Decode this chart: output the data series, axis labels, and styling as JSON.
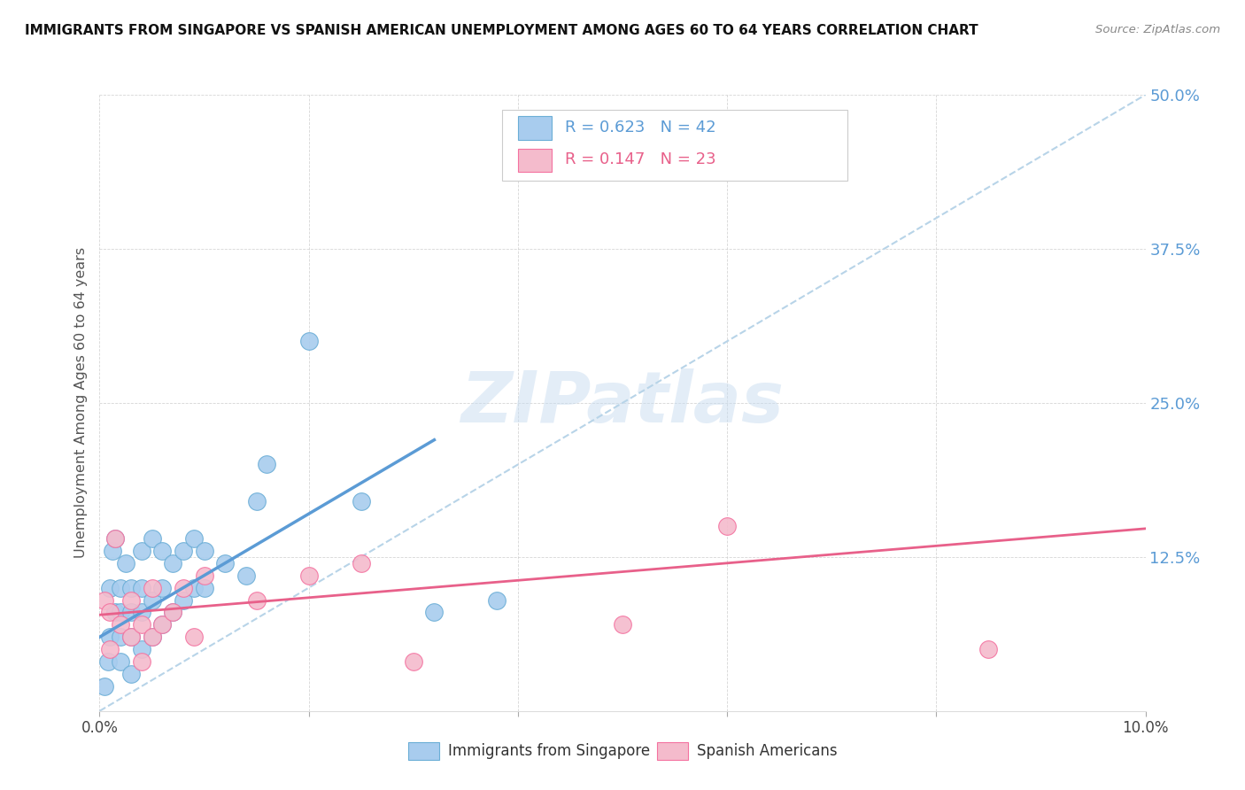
{
  "title": "IMMIGRANTS FROM SINGAPORE VS SPANISH AMERICAN UNEMPLOYMENT AMONG AGES 60 TO 64 YEARS CORRELATION CHART",
  "source": "Source: ZipAtlas.com",
  "ylabel": "Unemployment Among Ages 60 to 64 years",
  "xlim": [
    0.0,
    0.1
  ],
  "ylim": [
    0.0,
    0.5
  ],
  "yticks": [
    0.0,
    0.125,
    0.25,
    0.375,
    0.5
  ],
  "ytick_labels": [
    "",
    "12.5%",
    "25.0%",
    "37.5%",
    "50.0%"
  ],
  "xticks": [
    0.0,
    0.02,
    0.04,
    0.06,
    0.08,
    0.1
  ],
  "xtick_labels": [
    "0.0%",
    "",
    "",
    "",
    "",
    "10.0%"
  ],
  "legend_r1": "0.623",
  "legend_n1": "42",
  "legend_r2": "0.147",
  "legend_n2": "23",
  "legend_label1": "Immigrants from Singapore",
  "legend_label2": "Spanish Americans",
  "blue_fill": "#A8CCEE",
  "pink_fill": "#F4BBCC",
  "blue_edge": "#6BAED6",
  "pink_edge": "#F472A0",
  "blue_line": "#5B9BD5",
  "pink_line": "#E8608A",
  "dashed_color": "#B8D4E8",
  "watermark_color": "#C8DCF0",
  "watermark": "ZIPatlas",
  "singapore_x": [
    0.0005,
    0.0008,
    0.001,
    0.001,
    0.0012,
    0.0015,
    0.0015,
    0.002,
    0.002,
    0.002,
    0.002,
    0.0025,
    0.003,
    0.003,
    0.003,
    0.003,
    0.004,
    0.004,
    0.004,
    0.004,
    0.005,
    0.005,
    0.005,
    0.006,
    0.006,
    0.006,
    0.007,
    0.007,
    0.008,
    0.008,
    0.009,
    0.009,
    0.01,
    0.01,
    0.012,
    0.014,
    0.015,
    0.016,
    0.02,
    0.025,
    0.032,
    0.038
  ],
  "singapore_y": [
    0.02,
    0.04,
    0.06,
    0.1,
    0.13,
    0.08,
    0.14,
    0.04,
    0.06,
    0.08,
    0.1,
    0.12,
    0.03,
    0.06,
    0.08,
    0.1,
    0.05,
    0.08,
    0.1,
    0.13,
    0.06,
    0.09,
    0.14,
    0.07,
    0.1,
    0.13,
    0.08,
    0.12,
    0.09,
    0.13,
    0.1,
    0.14,
    0.1,
    0.13,
    0.12,
    0.11,
    0.17,
    0.2,
    0.3,
    0.17,
    0.08,
    0.09
  ],
  "spanish_x": [
    0.0005,
    0.001,
    0.001,
    0.0015,
    0.002,
    0.003,
    0.003,
    0.004,
    0.004,
    0.005,
    0.005,
    0.006,
    0.007,
    0.008,
    0.009,
    0.01,
    0.015,
    0.02,
    0.025,
    0.03,
    0.05,
    0.06,
    0.085
  ],
  "spanish_y": [
    0.09,
    0.05,
    0.08,
    0.14,
    0.07,
    0.06,
    0.09,
    0.04,
    0.07,
    0.06,
    0.1,
    0.07,
    0.08,
    0.1,
    0.06,
    0.11,
    0.09,
    0.11,
    0.12,
    0.04,
    0.07,
    0.15,
    0.05
  ],
  "singapore_trend_x": [
    0.0,
    0.032
  ],
  "singapore_trend_y": [
    0.06,
    0.22
  ],
  "spanish_trend_x": [
    0.0,
    0.1
  ],
  "spanish_trend_y": [
    0.078,
    0.148
  ],
  "dashed_line_x": [
    0.0,
    0.1
  ],
  "dashed_line_y": [
    0.0,
    0.5
  ]
}
